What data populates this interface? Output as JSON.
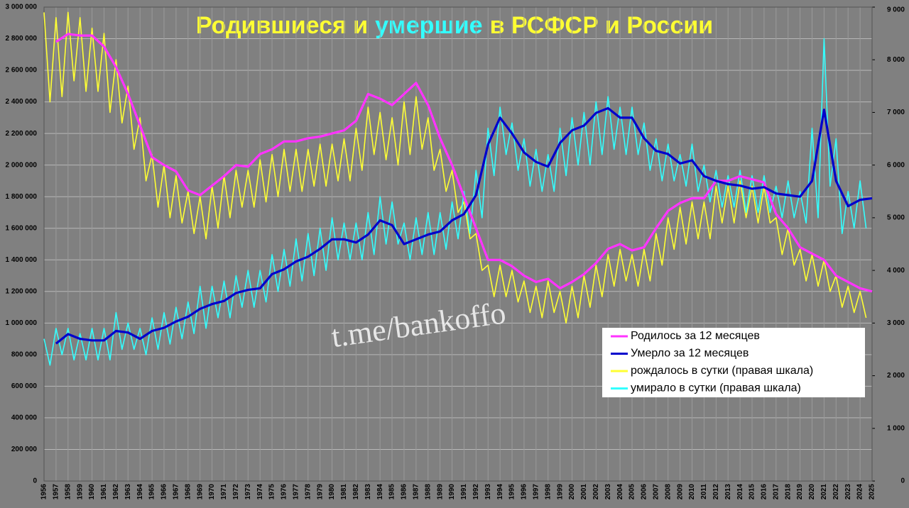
{
  "chart_data": {
    "type": "line",
    "title": [
      {
        "text": "Родившиеся и",
        "color": "#ffff33"
      },
      {
        "text": "умершие",
        "color": "#33ffff"
      },
      {
        "text": "в РСФСР и России",
        "color": "#ffff33"
      }
    ],
    "annotation": "t.me/bankoffo",
    "legend": "lower right",
    "grid": true,
    "xlim": [
      1956,
      2025
    ],
    "xticks": [
      1956,
      1957,
      1958,
      1959,
      1960,
      1961,
      1962,
      1963,
      1964,
      1965,
      1966,
      1967,
      1968,
      1969,
      1970,
      1971,
      1972,
      1973,
      1974,
      1975,
      1976,
      1977,
      1978,
      1979,
      1980,
      1981,
      1982,
      1983,
      1984,
      1985,
      1986,
      1987,
      1988,
      1989,
      1990,
      1991,
      1992,
      1993,
      1994,
      1995,
      1996,
      1997,
      1998,
      1999,
      2000,
      2001,
      2002,
      2003,
      2004,
      2005,
      2006,
      2007,
      2008,
      2009,
      2010,
      2011,
      2012,
      2013,
      2014,
      2015,
      2016,
      2017,
      2018,
      2019,
      2020,
      2021,
      2022,
      2023,
      2024,
      2025
    ],
    "ylim": [
      0,
      3000000
    ],
    "yticks": [
      0,
      {
        "value": 200000,
        "label": "200 000"
      },
      {
        "value": 400000,
        "label": "400 000"
      },
      {
        "value": 600000,
        "label": "600 000"
      },
      {
        "value": 800000,
        "label": "800 000"
      },
      {
        "value": 1000000,
        "label": "1 000 000"
      },
      {
        "value": 1200000,
        "label": "1 200 000"
      },
      {
        "value": 1400000,
        "label": "1 400 000"
      },
      {
        "value": 1600000,
        "label": "1 600 000"
      },
      {
        "value": 1800000,
        "label": "1 800 000"
      },
      {
        "value": 2000000,
        "label": "2 000 000"
      },
      {
        "value": 2200000,
        "label": "2 200 000"
      },
      {
        "value": 2400000,
        "label": "2 400 000"
      },
      {
        "value": 2600000,
        "label": "2 600 000"
      },
      {
        "value": 2800000,
        "label": "2 800 000"
      },
      {
        "value": 3000000,
        "label": "3 000 000"
      }
    ],
    "y2lim": [
      0,
      9000
    ],
    "y2ticks": [
      0,
      {
        "value": 1000,
        "label": "1 000"
      },
      {
        "value": 2000,
        "label": "2 000"
      },
      {
        "value": 3000,
        "label": "3 000"
      },
      {
        "value": 4000,
        "label": "4 000"
      },
      {
        "value": 5000,
        "label": "5 000"
      },
      {
        "value": 6000,
        "label": "6 000"
      },
      {
        "value": 7000,
        "label": "7 000"
      },
      {
        "value": 8000,
        "label": "8 000"
      },
      {
        "value": 9000,
        "label": "9 000"
      }
    ],
    "series": [
      {
        "name": "рождалось в сутки (правая шкала)",
        "color": "#ffff33",
        "axis": "y2",
        "x": [
          1956,
          1956.5,
          1957,
          1957.5,
          1958,
          1958.5,
          1959,
          1959.5,
          1960,
          1960.5,
          1961,
          1961.5,
          1962,
          1962.5,
          1963,
          1963.5,
          1964,
          1964.5,
          1965,
          1965.5,
          1966,
          1966.5,
          1967,
          1967.5,
          1968,
          1968.5,
          1969,
          1969.5,
          1970,
          1970.5,
          1971,
          1971.5,
          1972,
          1972.5,
          1973,
          1973.5,
          1974,
          1974.5,
          1975,
          1975.5,
          1976,
          1976.5,
          1977,
          1977.5,
          1978,
          1978.5,
          1979,
          1979.5,
          1980,
          1980.5,
          1981,
          1981.5,
          1982,
          1982.5,
          1983,
          1983.5,
          1984,
          1984.5,
          1985,
          1985.5,
          1986,
          1986.5,
          1987,
          1987.5,
          1988,
          1988.5,
          1989,
          1989.5,
          1990,
          1990.5,
          1991,
          1991.5,
          1992,
          1992.5,
          1993,
          1993.5,
          1994,
          1994.5,
          1995,
          1995.5,
          1996,
          1996.5,
          1997,
          1997.5,
          1998,
          1998.5,
          1999,
          1999.5,
          2000,
          2000.5,
          2001,
          2001.5,
          2002,
          2002.5,
          2003,
          2003.5,
          2004,
          2004.5,
          2005,
          2005.5,
          2006,
          2006.5,
          2007,
          2007.5,
          2008,
          2008.5,
          2009,
          2009.5,
          2010,
          2010.5,
          2011,
          2011.5,
          2012,
          2012.5,
          2013,
          2013.5,
          2014,
          2014.5,
          2015,
          2015.5,
          2016,
          2016.5,
          2017,
          2017.5,
          2018,
          2018.5,
          2019,
          2019.5,
          2020,
          2020.5,
          2021,
          2021.5,
          2022,
          2022.5,
          2023,
          2023.5,
          2024,
          2024.5
        ],
        "values": [
          8900,
          7200,
          8800,
          7300,
          8900,
          7600,
          8800,
          7400,
          8600,
          7400,
          8500,
          7000,
          8000,
          6800,
          7500,
          6300,
          6900,
          5700,
          6200,
          5200,
          6000,
          5000,
          5800,
          4900,
          5500,
          4700,
          5400,
          4600,
          5600,
          4800,
          5800,
          5000,
          5900,
          5200,
          5900,
          5200,
          6100,
          5300,
          6200,
          5400,
          6300,
          5500,
          6300,
          5500,
          6300,
          5600,
          6400,
          5600,
          6400,
          5700,
          6500,
          5700,
          6700,
          5900,
          7100,
          6200,
          7000,
          6100,
          6900,
          6000,
          7200,
          6200,
          7300,
          6300,
          6900,
          5900,
          6300,
          5500,
          5900,
          5100,
          5300,
          4600,
          4700,
          4000,
          4100,
          3500,
          4100,
          3500,
          4000,
          3400,
          3800,
          3200,
          3700,
          3100,
          3800,
          3200,
          3600,
          3000,
          3700,
          3100,
          3900,
          3300,
          4100,
          3500,
          4300,
          3700,
          4400,
          3800,
          4300,
          3700,
          4400,
          3800,
          4700,
          4100,
          5000,
          4400,
          5200,
          4500,
          5300,
          4600,
          5300,
          4600,
          5600,
          4900,
          5600,
          4900,
          5700,
          5000,
          5600,
          4900,
          5600,
          4900,
          5000,
          4300,
          4800,
          4100,
          4400,
          3800,
          4300,
          3700,
          4200,
          3600,
          3900,
          3300,
          3700,
          3200,
          3600,
          3100
        ]
      },
      {
        "name": "умирало в сутки (правая шкала)",
        "color": "#33ffff",
        "axis": "y2",
        "x": [
          1956,
          1956.5,
          1957,
          1957.5,
          1958,
          1958.5,
          1959,
          1959.5,
          1960,
          1960.5,
          1961,
          1961.5,
          1962,
          1962.5,
          1963,
          1963.5,
          1964,
          1964.5,
          1965,
          1965.5,
          1966,
          1966.5,
          1967,
          1967.5,
          1968,
          1968.5,
          1969,
          1969.5,
          1970,
          1970.5,
          1971,
          1971.5,
          1972,
          1972.5,
          1973,
          1973.5,
          1974,
          1974.5,
          1975,
          1975.5,
          1976,
          1976.5,
          1977,
          1977.5,
          1978,
          1978.5,
          1979,
          1979.5,
          1980,
          1980.5,
          1981,
          1981.5,
          1982,
          1982.5,
          1983,
          1983.5,
          1984,
          1984.5,
          1985,
          1985.5,
          1986,
          1986.5,
          1987,
          1987.5,
          1988,
          1988.5,
          1989,
          1989.5,
          1990,
          1990.5,
          1991,
          1991.5,
          1992,
          1992.5,
          1993,
          1993.5,
          1994,
          1994.5,
          1995,
          1995.5,
          1996,
          1996.5,
          1997,
          1997.5,
          1998,
          1998.5,
          1999,
          1999.5,
          2000,
          2000.5,
          2001,
          2001.5,
          2002,
          2002.5,
          2003,
          2003.5,
          2004,
          2004.5,
          2005,
          2005.5,
          2006,
          2006.5,
          2007,
          2007.5,
          2008,
          2008.5,
          2009,
          2009.5,
          2010,
          2010.5,
          2011,
          2011.5,
          2012,
          2012.5,
          2013,
          2013.5,
          2014,
          2014.5,
          2015,
          2015.5,
          2016,
          2016.5,
          2017,
          2017.5,
          2018,
          2018.5,
          2019,
          2019.5,
          2020,
          2020.5,
          2021,
          2021.5,
          2022,
          2022.5,
          2023,
          2023.5,
          2024,
          2024.5
        ],
        "values": [
          2700,
          2200,
          2900,
          2400,
          2900,
          2300,
          2800,
          2300,
          2900,
          2300,
          2900,
          2300,
          3200,
          2500,
          3000,
          2500,
          2900,
          2400,
          3100,
          2500,
          3200,
          2600,
          3300,
          2700,
          3400,
          2800,
          3700,
          2900,
          3700,
          3100,
          3800,
          3100,
          3900,
          3300,
          4000,
          3300,
          4000,
          3400,
          4300,
          3600,
          4400,
          3700,
          4600,
          3800,
          4700,
          3900,
          4800,
          4000,
          5000,
          4200,
          4900,
          4200,
          4900,
          4200,
          5100,
          4300,
          5400,
          4500,
          5300,
          4500,
          4900,
          4200,
          5000,
          4300,
          5100,
          4300,
          5100,
          4400,
          5300,
          4600,
          5500,
          4700,
          5900,
          5000,
          6700,
          5800,
          7100,
          6200,
          6800,
          5900,
          6500,
          5600,
          6300,
          5500,
          6200,
          5500,
          6700,
          5800,
          6900,
          6000,
          7000,
          6000,
          7200,
          6200,
          7300,
          6300,
          7100,
          6200,
          7100,
          6200,
          6800,
          5900,
          6500,
          5700,
          6400,
          5700,
          6200,
          5600,
          6400,
          5500,
          6000,
          5300,
          5900,
          5200,
          5800,
          5200,
          5900,
          5100,
          5800,
          5100,
          5800,
          5100,
          5600,
          5000,
          5700,
          5000,
          5500,
          4900,
          6700,
          5000,
          8400,
          5600,
          6500,
          4700,
          5500,
          4800,
          5700,
          4800
        ]
      },
      {
        "name": "Родилось за 12 месяцев",
        "color": "#ff33ff",
        "x": [
          1957,
          1958,
          1959,
          1960,
          1961,
          1962,
          1963,
          1964,
          1965,
          1966,
          1967,
          1968,
          1969,
          1970,
          1971,
          1972,
          1973,
          1974,
          1975,
          1976,
          1977,
          1978,
          1979,
          1980,
          1981,
          1982,
          1983,
          1984,
          1985,
          1986,
          1987,
          1988,
          1989,
          1990,
          1991,
          1992,
          1993,
          1994,
          1995,
          1996,
          1997,
          1998,
          1999,
          2000,
          2001,
          2002,
          2003,
          2004,
          2005,
          2006,
          2007,
          2008,
          2009,
          2010,
          2011,
          2012,
          2013,
          2014,
          2015,
          2016,
          2017,
          2018,
          2019,
          2020,
          2021,
          2022,
          2023,
          2024,
          2025
        ],
        "values": [
          2780000,
          2830000,
          2820000,
          2820000,
          2750000,
          2620000,
          2450000,
          2250000,
          2050000,
          2000000,
          1960000,
          1840000,
          1810000,
          1870000,
          1930000,
          2000000,
          1990000,
          2070000,
          2100000,
          2150000,
          2150000,
          2170000,
          2180000,
          2200000,
          2220000,
          2280000,
          2450000,
          2420000,
          2380000,
          2450000,
          2520000,
          2380000,
          2170000,
          2000000,
          1800000,
          1600000,
          1400000,
          1400000,
          1360000,
          1300000,
          1260000,
          1280000,
          1220000,
          1260000,
          1310000,
          1380000,
          1470000,
          1500000,
          1460000,
          1480000,
          1600000,
          1710000,
          1760000,
          1790000,
          1790000,
          1900000,
          1900000,
          1930000,
          1910000,
          1890000,
          1690000,
          1600000,
          1480000,
          1440000,
          1400000,
          1300000,
          1260000,
          1220000,
          1200000
        ]
      },
      {
        "name": "Умерло за 12 месяцев",
        "color": "#0000cc",
        "x": [
          1957,
          1958,
          1959,
          1960,
          1961,
          1962,
          1963,
          1964,
          1965,
          1966,
          1967,
          1968,
          1969,
          1970,
          1971,
          1972,
          1973,
          1974,
          1975,
          1976,
          1977,
          1978,
          1979,
          1980,
          1981,
          1982,
          1983,
          1984,
          1985,
          1986,
          1987,
          1988,
          1989,
          1990,
          1991,
          1992,
          1993,
          1994,
          1995,
          1996,
          1997,
          1998,
          1999,
          2000,
          2001,
          2002,
          2003,
          2004,
          2005,
          2006,
          2007,
          2008,
          2009,
          2010,
          2011,
          2012,
          2013,
          2014,
          2015,
          2016,
          2017,
          2018,
          2019,
          2020,
          2021,
          2022,
          2023,
          2024,
          2025
        ],
        "values": [
          870000,
          930000,
          900000,
          890000,
          890000,
          950000,
          940000,
          900000,
          950000,
          970000,
          1010000,
          1040000,
          1090000,
          1120000,
          1140000,
          1190000,
          1210000,
          1220000,
          1310000,
          1340000,
          1390000,
          1420000,
          1470000,
          1530000,
          1530000,
          1510000,
          1560000,
          1650000,
          1620000,
          1500000,
          1530000,
          1560000,
          1580000,
          1650000,
          1690000,
          1810000,
          2130000,
          2300000,
          2200000,
          2080000,
          2020000,
          1990000,
          2140000,
          2220000,
          2250000,
          2330000,
          2360000,
          2300000,
          2300000,
          2170000,
          2090000,
          2070000,
          2010000,
          2030000,
          1930000,
          1900000,
          1880000,
          1870000,
          1850000,
          1860000,
          1820000,
          1810000,
          1800000,
          1900000,
          2350000,
          1900000,
          1740000,
          1780000,
          1790000
        ]
      }
    ],
    "legend_order": [
      2,
      3,
      0,
      1
    ]
  }
}
